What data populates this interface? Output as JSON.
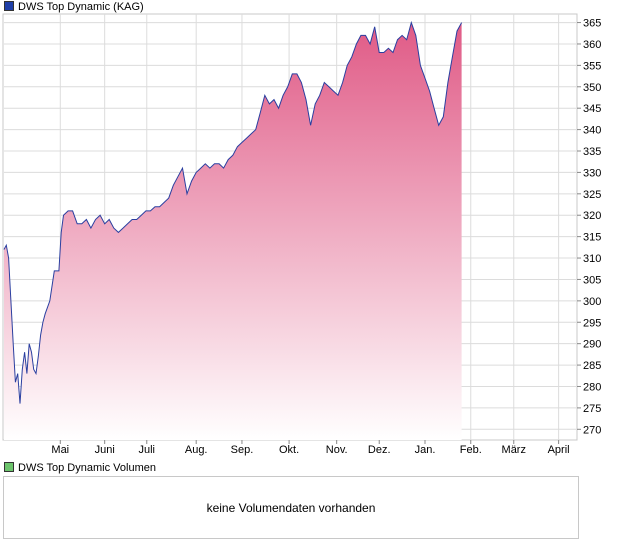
{
  "legend": {
    "main_label": "DWS Top Dynamic (KAG)",
    "volume_label": "DWS Top Dynamic Volumen"
  },
  "volume_panel": {
    "message": "keine Volumendaten vorhanden"
  },
  "colors": {
    "price_line": "#2a3fa0",
    "area_top": "#e05a86",
    "area_bottom": "#ffffff",
    "grid": "#dcdcdc",
    "main_swatch": "#1f3fa8",
    "volume_swatch": "#6cc46c"
  },
  "chart_data": {
    "type": "area",
    "title": "DWS Top Dynamic (KAG)",
    "xlabel": "",
    "ylabel": "",
    "ylim": [
      267.5,
      367
    ],
    "yticks": [
      270,
      275,
      280,
      285,
      290,
      295,
      300,
      305,
      310,
      315,
      320,
      325,
      330,
      335,
      340,
      345,
      350,
      355,
      360,
      365
    ],
    "month_labels": [
      {
        "label": "Mai",
        "t": 12.3
      },
      {
        "label": "Juni",
        "t": 22
      },
      {
        "label": "Juli",
        "t": 31.2
      },
      {
        "label": "Aug.",
        "t": 42
      },
      {
        "label": "Sep.",
        "t": 52
      },
      {
        "label": "Okt.",
        "t": 62.3
      },
      {
        "label": "Nov.",
        "t": 72.7
      },
      {
        "label": "Dez.",
        "t": 82
      },
      {
        "label": "Jan.",
        "t": 92
      },
      {
        "label": "Feb.",
        "t": 102
      },
      {
        "label": "März",
        "t": 111.4
      },
      {
        "label": "April",
        "t": 121.2
      }
    ],
    "series": [
      {
        "values": [
          [
            0,
            312
          ],
          [
            0.5,
            313
          ],
          [
            1,
            310
          ],
          [
            1.5,
            300
          ],
          [
            2,
            290
          ],
          [
            2.5,
            281
          ],
          [
            3,
            283
          ],
          [
            3.5,
            276
          ],
          [
            4,
            284
          ],
          [
            4.5,
            288
          ],
          [
            5,
            283
          ],
          [
            5.5,
            290
          ],
          [
            6,
            288
          ],
          [
            6.5,
            284
          ],
          [
            7,
            283
          ],
          [
            7.5,
            287
          ],
          [
            8,
            292
          ],
          [
            8.5,
            295
          ],
          [
            9,
            297
          ],
          [
            10,
            300
          ],
          [
            11,
            307
          ],
          [
            12,
            307
          ],
          [
            12.5,
            316
          ],
          [
            13,
            320
          ],
          [
            14,
            321
          ],
          [
            15,
            321
          ],
          [
            16,
            318
          ],
          [
            17,
            318
          ],
          [
            18,
            319
          ],
          [
            19,
            317
          ],
          [
            20,
            319
          ],
          [
            21,
            320
          ],
          [
            22,
            318
          ],
          [
            23,
            319
          ],
          [
            24,
            317
          ],
          [
            25,
            316
          ],
          [
            26,
            317
          ],
          [
            27,
            318
          ],
          [
            28,
            319
          ],
          [
            29,
            319
          ],
          [
            30,
            320
          ],
          [
            31,
            321
          ],
          [
            32,
            321
          ],
          [
            33,
            322
          ],
          [
            34,
            322
          ],
          [
            35,
            323
          ],
          [
            36,
            324
          ],
          [
            37,
            327
          ],
          [
            38,
            329
          ],
          [
            39,
            331
          ],
          [
            40,
            325
          ],
          [
            41,
            328
          ],
          [
            42,
            330
          ],
          [
            43,
            331
          ],
          [
            44,
            332
          ],
          [
            45,
            331
          ],
          [
            46,
            332
          ],
          [
            47,
            332
          ],
          [
            48,
            331
          ],
          [
            49,
            333
          ],
          [
            50,
            334
          ],
          [
            51,
            336
          ],
          [
            52,
            337
          ],
          [
            53,
            338
          ],
          [
            54,
            339
          ],
          [
            55,
            340
          ],
          [
            56,
            344
          ],
          [
            57,
            348
          ],
          [
            58,
            346
          ],
          [
            59,
            347
          ],
          [
            60,
            345
          ],
          [
            61,
            348
          ],
          [
            62,
            350
          ],
          [
            63,
            353
          ],
          [
            64,
            353
          ],
          [
            65,
            351
          ],
          [
            66,
            347
          ],
          [
            67,
            341
          ],
          [
            68,
            346
          ],
          [
            69,
            348
          ],
          [
            70,
            351
          ],
          [
            71,
            350
          ],
          [
            72,
            349
          ],
          [
            73,
            348
          ],
          [
            74,
            351
          ],
          [
            75,
            355
          ],
          [
            76,
            357
          ],
          [
            77,
            360
          ],
          [
            78,
            362
          ],
          [
            79,
            362
          ],
          [
            80,
            360
          ],
          [
            81,
            364
          ],
          [
            82,
            358
          ],
          [
            83,
            358
          ],
          [
            84,
            359
          ],
          [
            85,
            358
          ],
          [
            86,
            361
          ],
          [
            87,
            362
          ],
          [
            88,
            361
          ],
          [
            89,
            365
          ],
          [
            90,
            362
          ],
          [
            91,
            355
          ],
          [
            92,
            352
          ],
          [
            93,
            349
          ],
          [
            94,
            345
          ],
          [
            95,
            341
          ],
          [
            96,
            343
          ],
          [
            97,
            351
          ],
          [
            98,
            357
          ],
          [
            99,
            363
          ],
          [
            100,
            365
          ]
        ]
      }
    ],
    "grid": true,
    "legend_position": "top-left"
  }
}
